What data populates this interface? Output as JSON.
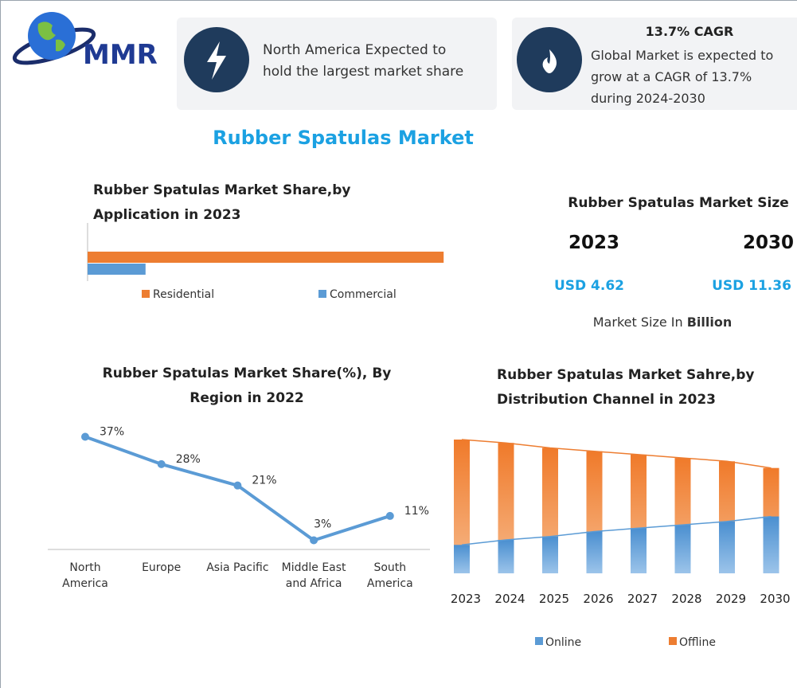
{
  "header": {
    "logo": "MMR",
    "card1": "North America Expected to hold the largest market share",
    "card2_title": "13.7% CAGR",
    "card2_text": "Global Market is expected to grow at a CAGR of 13.7% during 2024-2030"
  },
  "title": "Rubber Spatulas Market",
  "market_size": {
    "title": "Rubber Spatulas Market Size",
    "years": [
      "2023",
      "2030"
    ],
    "values": [
      "USD 4.62",
      "USD 11.36"
    ],
    "note": "Market Size In",
    "note_bold": "Billion"
  },
  "chart_data": [
    {
      "type": "bar",
      "orientation": "horizontal",
      "title": "Rubber Spatulas Market Share,by Application in 2023",
      "categories": [
        null
      ],
      "xlim": [
        0,
        100
      ],
      "series": [
        {
          "name": "Residential",
          "color": "#ed7d31",
          "values": [
            86
          ]
        },
        {
          "name": "Commercial",
          "color": "#5b9bd5",
          "values": [
            14
          ]
        }
      ]
    },
    {
      "type": "line",
      "title": "Rubber Spatulas Market Share(%), By Region in 2022",
      "categories": [
        "North America",
        "Europe",
        "Asia Pacific",
        "Middle East and Africa",
        "South America"
      ],
      "values": [
        37,
        28,
        21,
        3,
        11
      ],
      "value_labels": [
        "37%",
        "28%",
        "21%",
        "3%",
        "11%"
      ],
      "color": "#5b9bd5",
      "ylim": [
        0,
        40
      ]
    },
    {
      "type": "overlap-bar",
      "title": "Rubber Spatulas Market Sahre,by Distribution Channel in 2023",
      "categories": [
        "2023",
        "2024",
        "2025",
        "2026",
        "2027",
        "2028",
        "2029",
        "2030"
      ],
      "ylim": [
        0,
        100
      ],
      "series": [
        {
          "name": "Online",
          "color": "#5b9bd5",
          "values": [
            17,
            20,
            22,
            25,
            27,
            29,
            31,
            34
          ]
        },
        {
          "name": "Offline",
          "color": "#ed7d31",
          "values": [
            80,
            78,
            75,
            73,
            71,
            69,
            67,
            63
          ]
        }
      ]
    }
  ]
}
